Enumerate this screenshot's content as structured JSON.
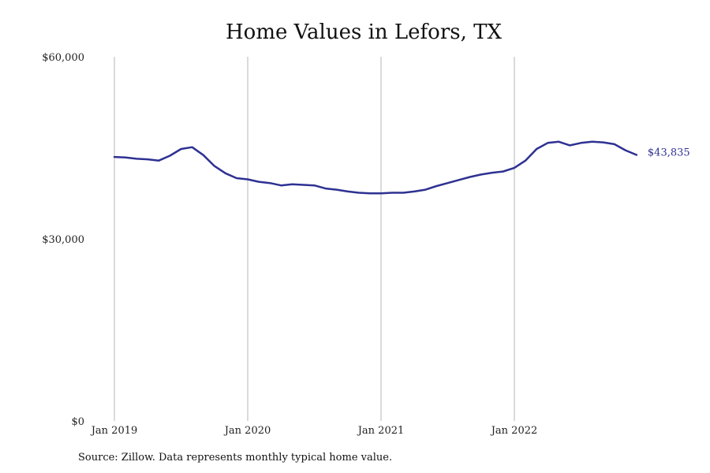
{
  "chart_data": {
    "type": "line",
    "title": "Home Values in Lefors, TX",
    "xlabel": "",
    "ylabel": "",
    "x_tick_labels": [
      "Jan 2019",
      "Jan 2020",
      "Jan 2021",
      "Jan 2022"
    ],
    "x_tick_dates": [
      "2019-01",
      "2020-01",
      "2021-01",
      "2022-01"
    ],
    "y_ticks": [
      0,
      30000,
      60000
    ],
    "y_tick_labels": [
      "$0",
      "$30,000",
      "$60,000"
    ],
    "ylim": [
      0,
      60000
    ],
    "grid": "vertical",
    "series": [
      {
        "color": "#2e3192",
        "x": [
          "2019-01",
          "2019-02",
          "2019-03",
          "2019-04",
          "2019-05",
          "2019-06",
          "2019-07",
          "2019-08",
          "2019-09",
          "2019-10",
          "2019-11",
          "2019-12",
          "2020-01",
          "2020-02",
          "2020-03",
          "2020-04",
          "2020-05",
          "2020-06",
          "2020-07",
          "2020-08",
          "2020-09",
          "2020-10",
          "2020-11",
          "2020-12",
          "2021-01",
          "2021-02",
          "2021-03",
          "2021-04",
          "2021-05",
          "2021-06",
          "2021-07",
          "2021-08",
          "2021-09",
          "2021-10",
          "2021-11",
          "2021-12",
          "2022-01",
          "2022-02",
          "2022-03",
          "2022-04",
          "2022-05",
          "2022-06",
          "2022-07",
          "2022-08",
          "2022-09",
          "2022-10",
          "2022-11",
          "2022-12"
        ],
        "values": [
          43500,
          43400,
          43200,
          43100,
          42900,
          43700,
          44800,
          45100,
          43800,
          42000,
          40800,
          40000,
          39800,
          39400,
          39200,
          38800,
          39000,
          38900,
          38800,
          38300,
          38100,
          37800,
          37600,
          37500,
          37500,
          37600,
          37600,
          37800,
          38100,
          38700,
          39200,
          39700,
          40200,
          40600,
          40900,
          41100,
          41700,
          42900,
          44800,
          45800,
          46000,
          45400,
          45800,
          46000,
          45900,
          45600,
          44600,
          43835
        ]
      }
    ],
    "end_label": "$43,835",
    "source": "Source: Zillow. Data represents monthly typical home value."
  }
}
